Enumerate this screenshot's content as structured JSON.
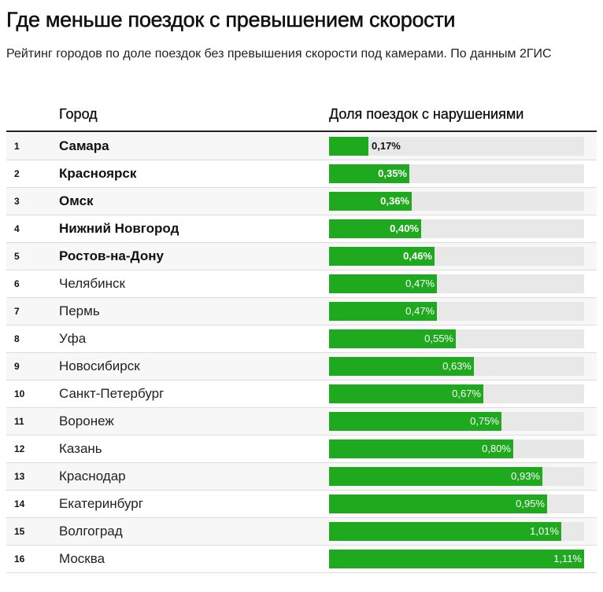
{
  "title": "Где меньше поездок с превышением скорости",
  "subtitle": "Рейтинг городов по доле поездок без превышения скорости под камерами. По данным 2ГИС",
  "chart_data": {
    "type": "bar",
    "title": "Где меньше поездок с превышением скорости",
    "subtitle": "Рейтинг городов по доле поездок без превышения скорости под камерами. По данным 2ГИС",
    "columns": [
      "Город",
      "Доля поездок с нарушениями"
    ],
    "categories": [
      "Самара",
      "Красноярск",
      "Омск",
      "Нижний Новгород",
      "Ростов-на-Дону",
      "Челябинск",
      "Пермь",
      "Уфа",
      "Новосибирск",
      "Санкт-Петербург",
      "Воронеж",
      "Казань",
      "Краснодар",
      "Екатеринбург",
      "Волгоград",
      "Москва"
    ],
    "ranks": [
      "1",
      "2",
      "3",
      "4",
      "5",
      "6",
      "7",
      "8",
      "9",
      "10",
      "11",
      "12",
      "13",
      "14",
      "15",
      "16"
    ],
    "values": [
      0.17,
      0.35,
      0.36,
      0.4,
      0.46,
      0.47,
      0.47,
      0.55,
      0.63,
      0.67,
      0.75,
      0.8,
      0.93,
      0.95,
      1.01,
      1.11
    ],
    "labels": [
      "0,17%",
      "0,35%",
      "0,36%",
      "0,40%",
      "0,46%",
      "0,47%",
      "0,47%",
      "0,55%",
      "0,63%",
      "0,67%",
      "0,75%",
      "0,80%",
      "0,93%",
      "0,95%",
      "1,01%",
      "1,11%"
    ],
    "highlighted_top": 5,
    "xlim": [
      0,
      1.11
    ],
    "color": "#1fa91f",
    "track_color": "#e8e8e8"
  }
}
